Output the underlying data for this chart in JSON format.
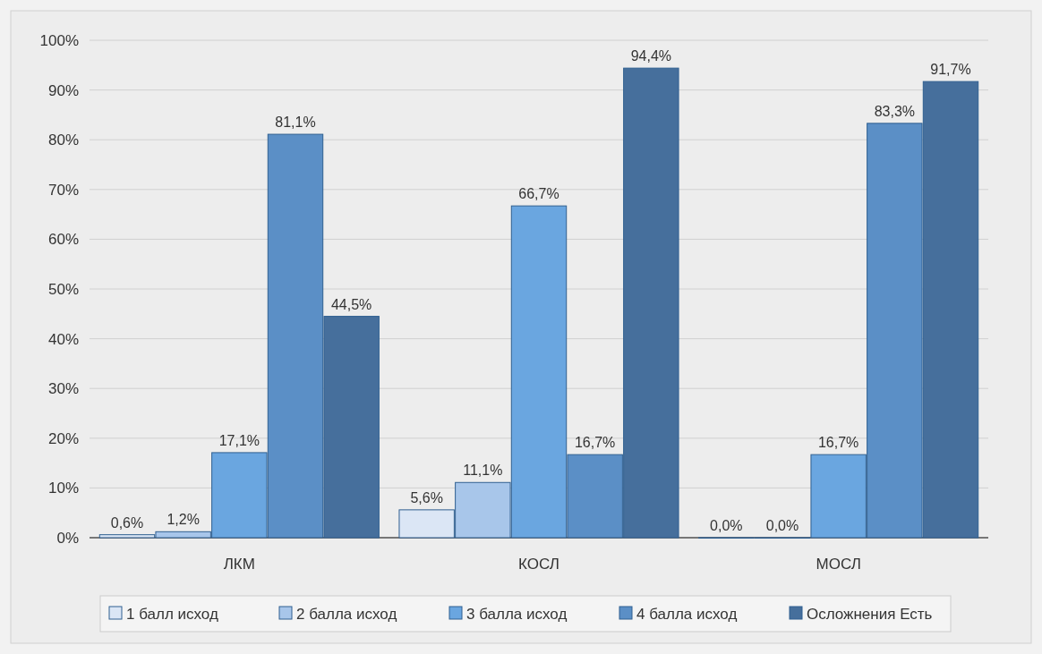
{
  "chart_data": {
    "type": "bar",
    "categories": [
      "ЛКМ",
      "КОСЛ",
      "МОСЛ"
    ],
    "series": [
      {
        "name": "1 балл исход",
        "color": "#dbe6f5",
        "values": [
          0.6,
          5.6,
          0.0
        ],
        "value_labels": [
          "0,6%",
          "5,6%",
          "0,0%"
        ]
      },
      {
        "name": "2 балла исход",
        "color": "#a8c6ea",
        "values": [
          1.2,
          11.1,
          0.0
        ],
        "value_labels": [
          "1,2%",
          "11,1%",
          "0,0%"
        ]
      },
      {
        "name": "3 балла исход",
        "color": "#6aa6e0",
        "values": [
          17.1,
          66.7,
          16.7
        ],
        "value_labels": [
          "17,1%",
          "66,7%",
          "16,7%"
        ]
      },
      {
        "name": "4 балла исход",
        "color": "#5b8fc6",
        "values": [
          81.1,
          16.7,
          83.3
        ],
        "value_labels": [
          "81,1%",
          "16,7%",
          "83,3%"
        ]
      },
      {
        "name": "Осложнения Есть",
        "color": "#466f9c",
        "values": [
          44.5,
          94.4,
          91.7
        ],
        "value_labels": [
          "44,5%",
          "94,4%",
          "91,7%"
        ]
      }
    ],
    "ylim": [
      0,
      100
    ],
    "yticks": [
      {
        "value": 0,
        "label": "0%"
      },
      {
        "value": 10,
        "label": "10%"
      },
      {
        "value": 20,
        "label": "20%"
      },
      {
        "value": 30,
        "label": "30%"
      },
      {
        "value": 40,
        "label": "40%"
      },
      {
        "value": 50,
        "label": "50%"
      },
      {
        "value": 60,
        "label": "60%"
      },
      {
        "value": 70,
        "label": "70%"
      },
      {
        "value": 80,
        "label": "80%"
      },
      {
        "value": 90,
        "label": "90%"
      },
      {
        "value": 100,
        "label": "100%"
      }
    ],
    "grid": "y",
    "legend": "bottom"
  }
}
